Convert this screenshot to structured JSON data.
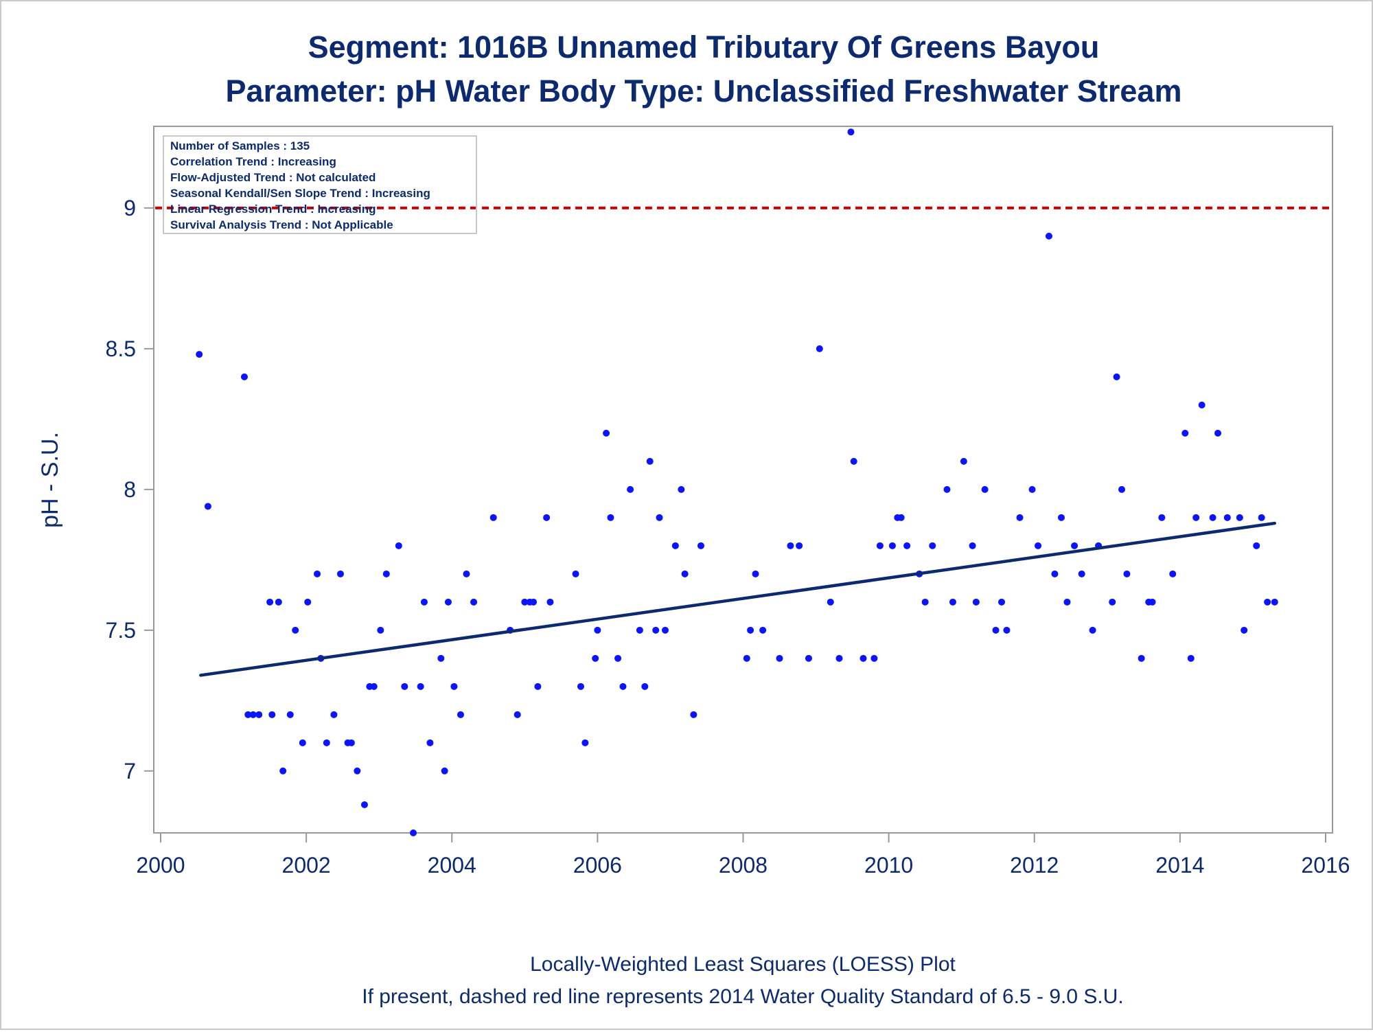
{
  "colors": {
    "title": "#0b2a6f",
    "points": "#0a14ff",
    "trend": "#0b2a6f",
    "standard_line": "#d40000",
    "frame": "#999999"
  },
  "chart_data": {
    "type": "scatter",
    "title": "Segment: 1016B  Unnamed Tributary Of Greens Bayou",
    "subtitle": "Parameter: pH   Water Body Type: Unclassified Freshwater Stream",
    "xlabel": "",
    "ylabel": "pH - S.U.",
    "xlim": [
      2000,
      2016
    ],
    "ylim": [
      6.78,
      9.29
    ],
    "x_ticks": [
      2000,
      2002,
      2004,
      2006,
      2008,
      2010,
      2012,
      2014,
      2016
    ],
    "y_ticks": [
      7,
      7.5,
      8,
      8.5,
      9
    ],
    "grid": false,
    "stats_box": [
      "Number of Samples : 135",
      "Correlation Trend : Increasing",
      "Flow-Adjusted Trend : Not calculated",
      "Seasonal Kendall/Sen Slope Trend : Increasing",
      "Linear Regression Trend : Increasing",
      "Survival Analysis Trend : Not Applicable"
    ],
    "reference_line": {
      "y": 9.0,
      "style": "dashed"
    },
    "trend_line": {
      "x": [
        2000.55,
        2015.3
      ],
      "y": [
        7.34,
        7.88
      ]
    },
    "footnotes": [
      "Locally-Weighted Least Squares (LOESS) Plot",
      "If present, dashed red line represents 2014 Water Quality Standard of 6.5 - 9.0 S.U."
    ],
    "points": [
      [
        2000.53,
        8.48
      ],
      [
        2000.65,
        7.94
      ],
      [
        2001.15,
        8.4
      ],
      [
        2001.2,
        7.2
      ],
      [
        2001.27,
        7.2
      ],
      [
        2001.35,
        7.2
      ],
      [
        2001.5,
        7.6
      ],
      [
        2001.53,
        7.2
      ],
      [
        2001.62,
        7.6
      ],
      [
        2001.68,
        7.0
      ],
      [
        2001.78,
        7.2
      ],
      [
        2001.85,
        7.5
      ],
      [
        2001.95,
        7.1
      ],
      [
        2002.02,
        7.6
      ],
      [
        2002.15,
        7.7
      ],
      [
        2002.2,
        7.4
      ],
      [
        2002.28,
        7.1
      ],
      [
        2002.38,
        7.2
      ],
      [
        2002.47,
        7.7
      ],
      [
        2002.57,
        7.1
      ],
      [
        2002.62,
        7.1
      ],
      [
        2002.7,
        7.0
      ],
      [
        2002.8,
        6.88
      ],
      [
        2002.87,
        7.3
      ],
      [
        2002.93,
        7.3
      ],
      [
        2003.02,
        7.5
      ],
      [
        2003.1,
        7.7
      ],
      [
        2003.27,
        7.8
      ],
      [
        2003.35,
        7.3
      ],
      [
        2003.47,
        6.78
      ],
      [
        2003.57,
        7.3
      ],
      [
        2003.62,
        7.6
      ],
      [
        2003.7,
        7.1
      ],
      [
        2003.85,
        7.4
      ],
      [
        2003.9,
        7.0
      ],
      [
        2003.95,
        7.6
      ],
      [
        2004.03,
        7.3
      ],
      [
        2004.12,
        7.2
      ],
      [
        2004.2,
        7.7
      ],
      [
        2004.3,
        7.6
      ],
      [
        2004.57,
        7.9
      ],
      [
        2004.8,
        7.5
      ],
      [
        2004.9,
        7.2
      ],
      [
        2005.0,
        7.6
      ],
      [
        2005.07,
        7.6
      ],
      [
        2005.12,
        7.6
      ],
      [
        2005.18,
        7.3
      ],
      [
        2005.3,
        7.9
      ],
      [
        2005.35,
        7.6
      ],
      [
        2005.7,
        7.7
      ],
      [
        2005.77,
        7.3
      ],
      [
        2005.83,
        7.1
      ],
      [
        2005.97,
        7.4
      ],
      [
        2006.0,
        7.5
      ],
      [
        2006.12,
        8.2
      ],
      [
        2006.18,
        7.9
      ],
      [
        2006.28,
        7.4
      ],
      [
        2006.35,
        7.3
      ],
      [
        2006.45,
        8.0
      ],
      [
        2006.58,
        7.5
      ],
      [
        2006.65,
        7.3
      ],
      [
        2006.72,
        8.1
      ],
      [
        2006.8,
        7.5
      ],
      [
        2006.85,
        7.9
      ],
      [
        2006.93,
        7.5
      ],
      [
        2007.07,
        7.8
      ],
      [
        2007.15,
        8.0
      ],
      [
        2007.2,
        7.7
      ],
      [
        2007.32,
        7.2
      ],
      [
        2007.42,
        7.8
      ],
      [
        2008.05,
        7.4
      ],
      [
        2008.1,
        7.5
      ],
      [
        2008.17,
        7.7
      ],
      [
        2008.27,
        7.5
      ],
      [
        2008.5,
        7.4
      ],
      [
        2008.65,
        7.8
      ],
      [
        2008.77,
        7.8
      ],
      [
        2008.9,
        7.4
      ],
      [
        2009.05,
        8.5
      ],
      [
        2009.2,
        7.6
      ],
      [
        2009.32,
        7.4
      ],
      [
        2009.48,
        9.27
      ],
      [
        2009.52,
        8.1
      ],
      [
        2009.65,
        7.4
      ],
      [
        2009.8,
        7.4
      ],
      [
        2009.88,
        7.8
      ],
      [
        2010.05,
        7.8
      ],
      [
        2010.12,
        7.9
      ],
      [
        2010.17,
        7.9
      ],
      [
        2010.25,
        7.8
      ],
      [
        2010.42,
        7.7
      ],
      [
        2010.5,
        7.6
      ],
      [
        2010.6,
        7.8
      ],
      [
        2010.8,
        8.0
      ],
      [
        2010.88,
        7.6
      ],
      [
        2011.03,
        8.1
      ],
      [
        2011.15,
        7.8
      ],
      [
        2011.2,
        7.6
      ],
      [
        2011.32,
        8.0
      ],
      [
        2011.47,
        7.5
      ],
      [
        2011.55,
        7.6
      ],
      [
        2011.62,
        7.5
      ],
      [
        2011.8,
        7.9
      ],
      [
        2011.97,
        8.0
      ],
      [
        2012.05,
        7.8
      ],
      [
        2012.2,
        8.9
      ],
      [
        2012.28,
        7.7
      ],
      [
        2012.37,
        7.9
      ],
      [
        2012.45,
        7.6
      ],
      [
        2012.55,
        7.8
      ],
      [
        2012.65,
        7.7
      ],
      [
        2012.8,
        7.5
      ],
      [
        2012.88,
        7.8
      ],
      [
        2013.07,
        7.6
      ],
      [
        2013.13,
        8.4
      ],
      [
        2013.2,
        8.0
      ],
      [
        2013.27,
        7.7
      ],
      [
        2013.47,
        7.4
      ],
      [
        2013.57,
        7.6
      ],
      [
        2013.62,
        7.6
      ],
      [
        2013.75,
        7.9
      ],
      [
        2013.9,
        7.7
      ],
      [
        2014.07,
        8.2
      ],
      [
        2014.15,
        7.4
      ],
      [
        2014.22,
        7.9
      ],
      [
        2014.3,
        8.3
      ],
      [
        2014.45,
        7.9
      ],
      [
        2014.52,
        8.2
      ],
      [
        2014.65,
        7.9
      ],
      [
        2014.82,
        7.9
      ],
      [
        2014.88,
        7.5
      ],
      [
        2015.05,
        7.8
      ],
      [
        2015.12,
        7.9
      ],
      [
        2015.2,
        7.6
      ],
      [
        2015.3,
        7.6
      ]
    ]
  }
}
